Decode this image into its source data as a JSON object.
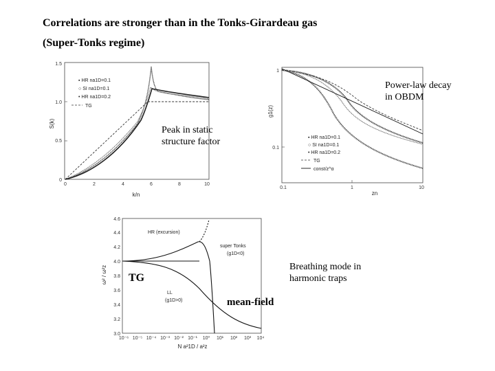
{
  "slide": {
    "title_line1": "Correlations are stronger than in the Tonks-Girardeau gas",
    "title_line2": "(Super-Tonks regime)"
  },
  "annotations": {
    "power_law_line1": "Power-law decay",
    "power_law_line2": "in OBDM",
    "peak_line1": "Peak in static",
    "peak_line2": "structure factor",
    "breathing_line1": "Breathing mode in",
    "breathing_line2": "harmonic traps",
    "tg": "TG",
    "mean_field": "mean-field"
  },
  "plot_sk": {
    "ylabel": "S(k)",
    "xlabel": "k/n",
    "yticks": [
      "0",
      "0.5",
      "1.0",
      "1.5"
    ],
    "xticks": [
      "0",
      "2",
      "4",
      "6",
      "8",
      "10"
    ],
    "legend": [
      "HR  na1D=0.1",
      "SI  na1D=0.1",
      "HR  na1D=0.2",
      "TG"
    ]
  },
  "plot_g1": {
    "ylabel": "g1(z)",
    "xlabel": "zn",
    "yticks": [
      "1",
      "0.1"
    ],
    "xticks": [
      "0.1",
      "1",
      "10"
    ],
    "legend": [
      "HR  na1D=0.1",
      "SI  na1D=0.1",
      "HR  na1D=0.2",
      "TG",
      "const/z^α"
    ]
  },
  "plot_omega": {
    "ylabel": "ω² / ω²z",
    "xlabel": "N a²1D / a²z",
    "yticks": [
      "3.0",
      "3.2",
      "3.4",
      "3.6",
      "3.8",
      "4.0",
      "4.2",
      "4.4",
      "4.6"
    ],
    "xticks": [
      "10⁻⁶",
      "10⁻⁵",
      "10⁻⁴",
      "10⁻³",
      "10⁻²",
      "10⁻¹",
      "10⁰",
      "10¹",
      "10²",
      "10³",
      "10⁴"
    ],
    "labels": {
      "hr": "HR (excursion)",
      "super_tonks": "super Tonks",
      "super_tonks_cond": "(g1D<0)",
      "ll": "LL",
      "ll_cond": "(g1D>0)"
    }
  }
}
